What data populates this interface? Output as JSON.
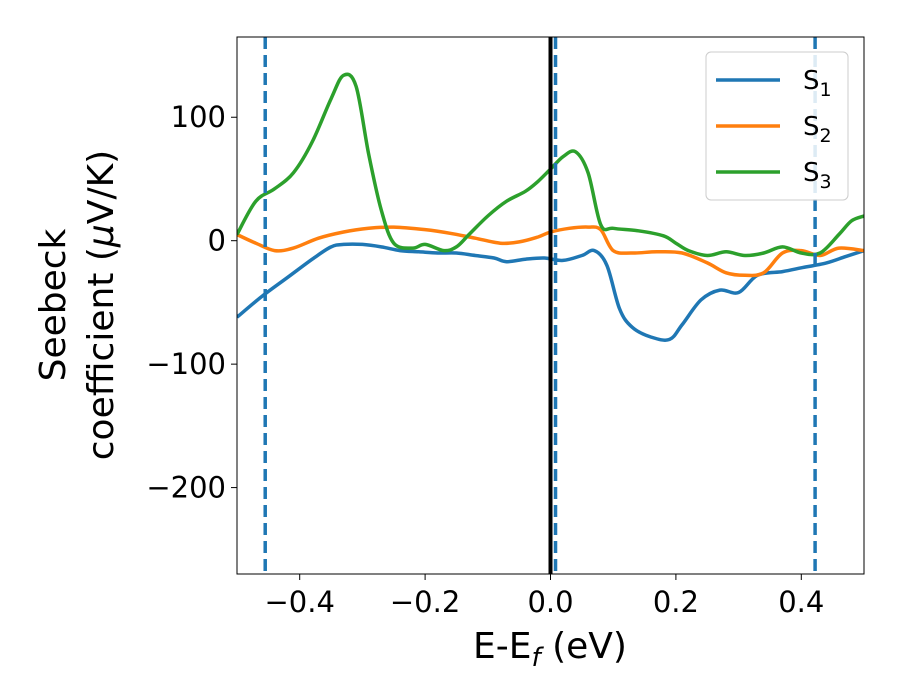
{
  "chart_data": {
    "type": "line",
    "xlabel": {
      "main": "E-E",
      "sub": "f",
      "unit": " (eV)"
    },
    "ylabel": {
      "line1": "Seebeck",
      "line2_text": "coefficient  (",
      "mu": "μ",
      "unit": "V/K)"
    },
    "xlim": [
      -0.5,
      0.5
    ],
    "ylim": [
      -270,
      165
    ],
    "xticks": [
      -0.4,
      -0.2,
      0.0,
      0.2,
      0.4
    ],
    "xtick_labels": [
      "−0.4",
      "−0.2",
      "0.0",
      "0.2",
      "0.4"
    ],
    "yticks": [
      -200,
      -100,
      0,
      100
    ],
    "ytick_labels": [
      "−200",
      "−100",
      "0",
      "100"
    ],
    "vlines": [
      {
        "x": -0.455,
        "style": "dashed",
        "color": "#1f77b4"
      },
      {
        "x": 0.008,
        "style": "dashed",
        "color": "#1f77b4"
      },
      {
        "x": 0.422,
        "style": "dashed",
        "color": "#1f77b4"
      },
      {
        "x": 0.0,
        "style": "solid",
        "color": "#000000"
      }
    ],
    "legend": {
      "placement": "top-right"
    },
    "series": [
      {
        "name": "S",
        "sub": "1",
        "color": "#1f77b4",
        "points": [
          [
            -0.5,
            -62
          ],
          [
            -0.46,
            -45
          ],
          [
            -0.42,
            -30
          ],
          [
            -0.38,
            -15
          ],
          [
            -0.35,
            -5
          ],
          [
            -0.33,
            -3
          ],
          [
            -0.3,
            -3
          ],
          [
            -0.27,
            -5
          ],
          [
            -0.24,
            -8
          ],
          [
            -0.21,
            -9
          ],
          [
            -0.18,
            -10
          ],
          [
            -0.15,
            -10
          ],
          [
            -0.12,
            -12
          ],
          [
            -0.09,
            -14
          ],
          [
            -0.07,
            -17
          ],
          [
            -0.04,
            -15
          ],
          [
            -0.01,
            -14
          ],
          [
            0.02,
            -16
          ],
          [
            0.05,
            -12
          ],
          [
            0.07,
            -8
          ],
          [
            0.09,
            -20
          ],
          [
            0.11,
            -55
          ],
          [
            0.13,
            -70
          ],
          [
            0.16,
            -78
          ],
          [
            0.19,
            -80
          ],
          [
            0.21,
            -68
          ],
          [
            0.24,
            -48
          ],
          [
            0.27,
            -40
          ],
          [
            0.3,
            -42
          ],
          [
            0.33,
            -28
          ],
          [
            0.37,
            -25
          ],
          [
            0.4,
            -22
          ],
          [
            0.44,
            -18
          ],
          [
            0.47,
            -13
          ],
          [
            0.5,
            -8
          ]
        ]
      },
      {
        "name": "S",
        "sub": "2",
        "color": "#ff7f0e",
        "points": [
          [
            -0.5,
            5
          ],
          [
            -0.47,
            -2
          ],
          [
            -0.44,
            -8
          ],
          [
            -0.41,
            -6
          ],
          [
            -0.37,
            2
          ],
          [
            -0.33,
            7
          ],
          [
            -0.29,
            10
          ],
          [
            -0.25,
            11
          ],
          [
            -0.2,
            9
          ],
          [
            -0.16,
            6
          ],
          [
            -0.12,
            2
          ],
          [
            -0.08,
            -2
          ],
          [
            -0.05,
            -1
          ],
          [
            -0.02,
            3
          ],
          [
            0.0,
            7
          ],
          [
            0.03,
            10
          ],
          [
            0.06,
            11
          ],
          [
            0.08,
            9
          ],
          [
            0.1,
            -8
          ],
          [
            0.13,
            -10
          ],
          [
            0.17,
            -9
          ],
          [
            0.21,
            -10
          ],
          [
            0.25,
            -18
          ],
          [
            0.28,
            -26
          ],
          [
            0.31,
            -28
          ],
          [
            0.34,
            -26
          ],
          [
            0.37,
            -10
          ],
          [
            0.4,
            -8
          ],
          [
            0.43,
            -12
          ],
          [
            0.46,
            -6
          ],
          [
            0.5,
            -8
          ]
        ]
      },
      {
        "name": "S",
        "sub": "3",
        "color": "#2ca02c",
        "points": [
          [
            -0.5,
            5
          ],
          [
            -0.47,
            32
          ],
          [
            -0.44,
            42
          ],
          [
            -0.41,
            55
          ],
          [
            -0.38,
            80
          ],
          [
            -0.35,
            115
          ],
          [
            -0.33,
            134
          ],
          [
            -0.31,
            125
          ],
          [
            -0.29,
            70
          ],
          [
            -0.27,
            25
          ],
          [
            -0.25,
            -2
          ],
          [
            -0.22,
            -6
          ],
          [
            -0.2,
            -3
          ],
          [
            -0.17,
            -8
          ],
          [
            -0.15,
            -5
          ],
          [
            -0.13,
            5
          ],
          [
            -0.1,
            20
          ],
          [
            -0.07,
            32
          ],
          [
            -0.04,
            40
          ],
          [
            -0.02,
            48
          ],
          [
            0.0,
            58
          ],
          [
            0.02,
            68
          ],
          [
            0.04,
            72
          ],
          [
            0.06,
            55
          ],
          [
            0.08,
            13
          ],
          [
            0.1,
            10
          ],
          [
            0.14,
            8
          ],
          [
            0.18,
            4
          ],
          [
            0.2,
            -2
          ],
          [
            0.22,
            -8
          ],
          [
            0.25,
            -12
          ],
          [
            0.28,
            -9
          ],
          [
            0.31,
            -12
          ],
          [
            0.34,
            -10
          ],
          [
            0.37,
            -5
          ],
          [
            0.4,
            -10
          ],
          [
            0.43,
            -10
          ],
          [
            0.46,
            5
          ],
          [
            0.48,
            16
          ],
          [
            0.5,
            20
          ]
        ]
      }
    ]
  }
}
